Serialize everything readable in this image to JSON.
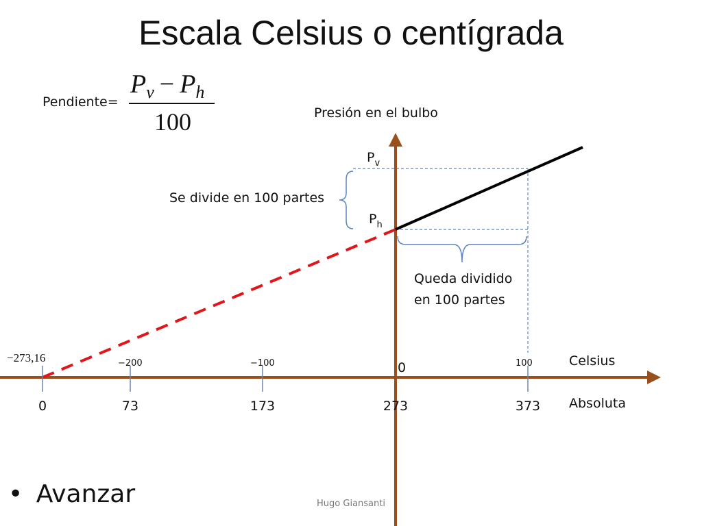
{
  "title": "Escala Celsius o centígrada",
  "slope": {
    "label": "Pendiente=",
    "numerator": [
      {
        "base": "P",
        "sub": "v"
      },
      {
        "base": "P",
        "sub": "h"
      }
    ],
    "operator": "−",
    "denominator": "100"
  },
  "vertical_axis_label": "Presión en el bulbo",
  "pv_label": {
    "base": "P",
    "sub": "v"
  },
  "ph_label": {
    "base": "P",
    "sub": "h"
  },
  "left_brace_note": "Se divide en 100 partes",
  "bottom_brace_note": [
    "Queda dividido",
    "en 100 partes"
  ],
  "celsius": {
    "label": "Celsius",
    "ticks": [
      "−273,16",
      "−200",
      "−100",
      "0",
      "100"
    ]
  },
  "absolute": {
    "label": "Absoluta",
    "ticks": [
      "0",
      "73",
      "173",
      "273",
      "373"
    ]
  },
  "bullet": "Avanzar",
  "footer": "Hugo Giansanti"
}
